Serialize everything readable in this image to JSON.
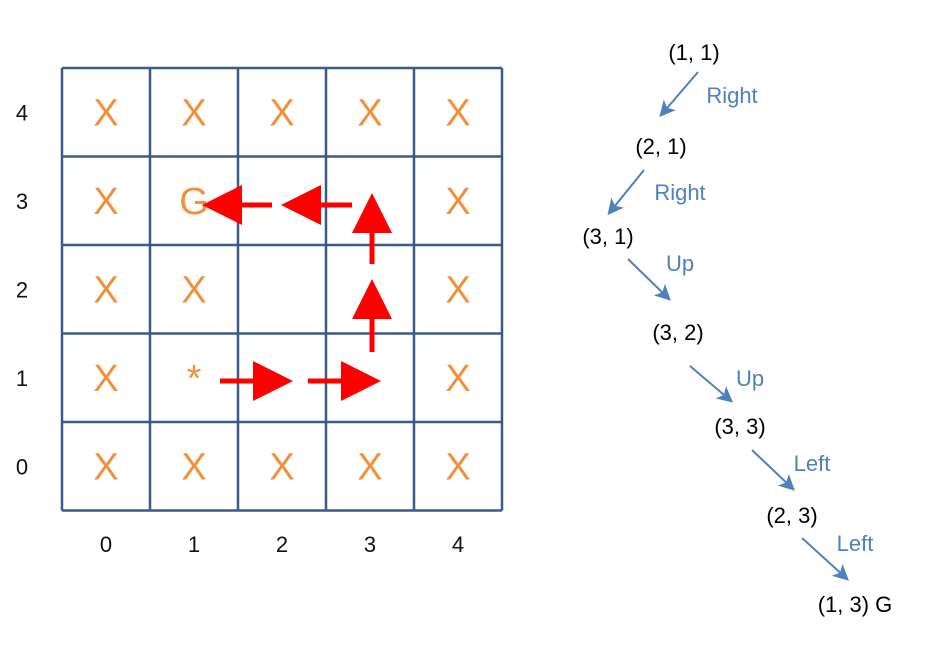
{
  "grid": {
    "line_color": "#3a5a8c",
    "cell_color": "#f0923c",
    "arrow_color": "#ff0000",
    "rows": [
      {
        "y": "4",
        "cells": [
          "X",
          "X",
          "X",
          "X",
          "X"
        ]
      },
      {
        "y": "3",
        "cells": [
          "X",
          "G",
          "",
          "",
          "X"
        ]
      },
      {
        "y": "2",
        "cells": [
          "X",
          "X",
          "",
          "",
          "X"
        ]
      },
      {
        "y": "1",
        "cells": [
          "X",
          "*",
          "",
          "",
          "X"
        ]
      },
      {
        "y": "0",
        "cells": [
          "X",
          "X",
          "X",
          "X",
          "X"
        ]
      }
    ],
    "x_labels": [
      "0",
      "1",
      "2",
      "3",
      "4"
    ],
    "path_moves": [
      "right",
      "right",
      "up",
      "up",
      "left",
      "left"
    ]
  },
  "trace": {
    "nodes": [
      "(1, 1)",
      "(2, 1)",
      "(3, 1)",
      "(3, 2)",
      "(3, 3)",
      "(2, 3)",
      "(1, 3) G"
    ],
    "actions": [
      "Right",
      "Right",
      "Up",
      "Up",
      "Left",
      "Left"
    ],
    "action_color": "#4f81bd"
  }
}
